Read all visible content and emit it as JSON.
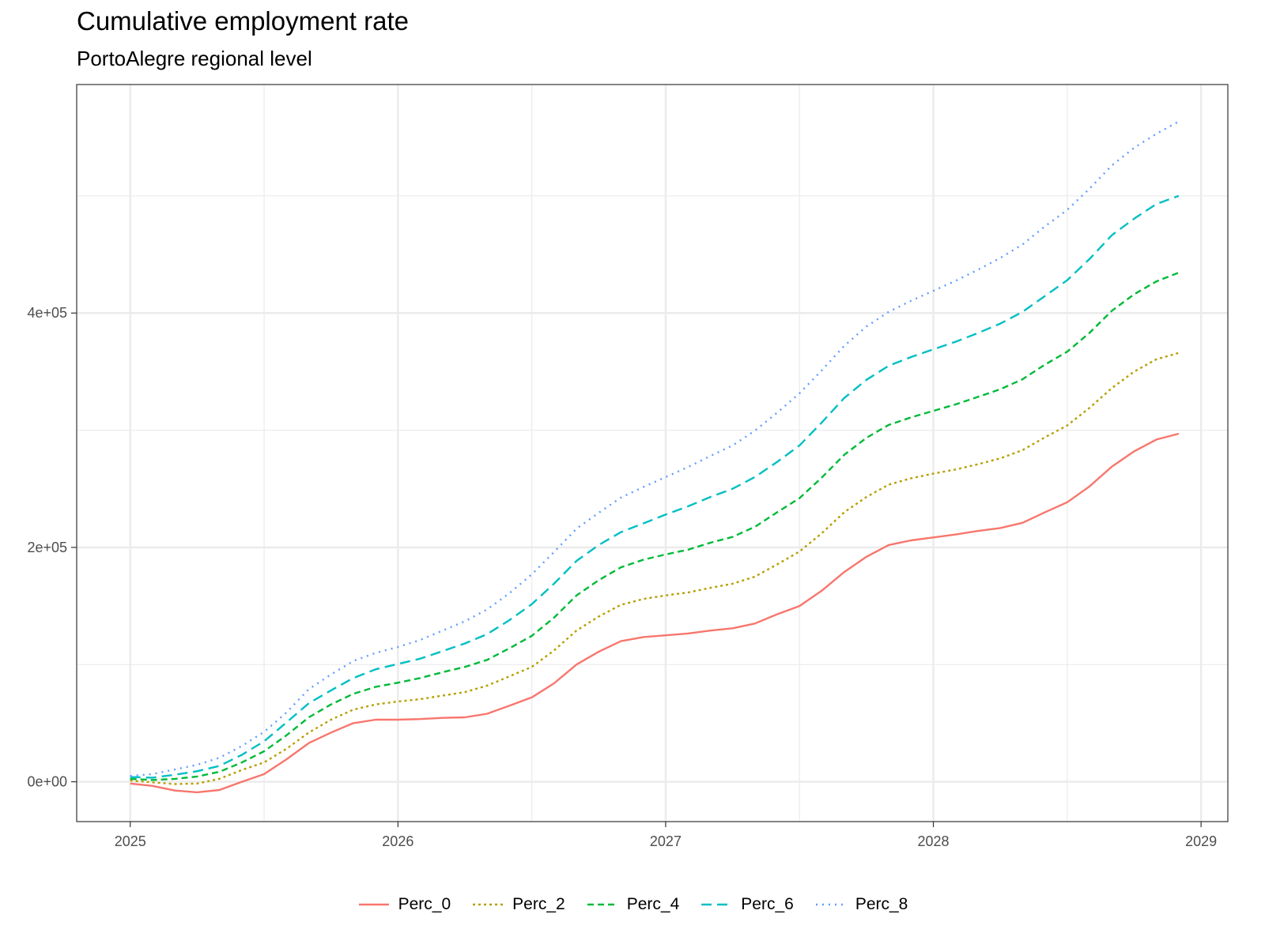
{
  "chart_data": {
    "type": "line",
    "title": "Cumulative employment rate",
    "subtitle": "PortoAlegre regional level",
    "xlabel": "",
    "ylabel": "",
    "x_ticks": [
      "2025",
      "2026",
      "2027",
      "2028",
      "2029"
    ],
    "y_ticks": [
      "0e+00",
      "2e+05",
      "4e+05"
    ],
    "xlim": [
      2024.8,
      2029.1
    ],
    "ylim": [
      -34000,
      595000
    ],
    "grid": true,
    "legend_position": "bottom",
    "x": [
      2025.0,
      2025.083,
      2025.167,
      2025.25,
      2025.333,
      2025.417,
      2025.5,
      2025.583,
      2025.667,
      2025.75,
      2025.833,
      2025.917,
      2026.0,
      2026.083,
      2026.167,
      2026.25,
      2026.333,
      2026.417,
      2026.5,
      2026.583,
      2026.667,
      2026.75,
      2026.833,
      2026.917,
      2027.0,
      2027.083,
      2027.167,
      2027.25,
      2027.333,
      2027.417,
      2027.5,
      2027.583,
      2027.667,
      2027.75,
      2027.833,
      2027.917,
      2028.0,
      2028.083,
      2028.167,
      2028.25,
      2028.333,
      2028.417,
      2028.5,
      2028.583,
      2028.667,
      2028.75,
      2028.833,
      2028.917
    ],
    "series": [
      {
        "name": "Perc_0",
        "color": "#F8766D",
        "dash": "",
        "values": [
          -1500,
          -3500,
          -7500,
          -9000,
          -7000,
          0,
          6500,
          19000,
          33000,
          42000,
          50000,
          53000,
          53000,
          53500,
          54500,
          55000,
          58000,
          65000,
          72000,
          84000,
          100000,
          111000,
          120000,
          123500,
          125000,
          126500,
          129000,
          131000,
          135000,
          143000,
          150000,
          163000,
          179000,
          192000,
          202000,
          206000,
          208500,
          211000,
          214000,
          216500,
          221000,
          230000,
          238500,
          252000,
          269000,
          282000,
          292000,
          297000
        ]
      },
      {
        "name": "Perc_2",
        "color": "#B79F00",
        "dash": "3,4",
        "values": [
          1000,
          -500,
          -2000,
          -1500,
          2500,
          10000,
          16500,
          28000,
          42000,
          53000,
          61500,
          66000,
          68500,
          70500,
          73500,
          76500,
          82000,
          90000,
          98000,
          112000,
          129000,
          141000,
          151000,
          156000,
          159000,
          161500,
          165500,
          169000,
          175000,
          185500,
          196500,
          212000,
          230000,
          243000,
          253500,
          259000,
          263000,
          266500,
          271000,
          276000,
          283000,
          294000,
          304000,
          319000,
          336000,
          350000,
          360500,
          366000
        ]
      },
      {
        "name": "Perc_4",
        "color": "#00BA38",
        "dash": "8,5",
        "values": [
          2500,
          1500,
          2500,
          4500,
          8500,
          16500,
          26000,
          39500,
          55000,
          66000,
          75000,
          81000,
          84500,
          88500,
          93500,
          98000,
          104000,
          114000,
          124500,
          140000,
          159000,
          172000,
          183000,
          189500,
          194000,
          198000,
          204000,
          209000,
          217500,
          230000,
          242000,
          259500,
          279000,
          293500,
          304500,
          311000,
          316500,
          322000,
          328500,
          335000,
          343500,
          356000,
          367000,
          383000,
          402000,
          416000,
          427000,
          434500
        ]
      },
      {
        "name": "Perc_6",
        "color": "#00BFC4",
        "dash": "13,7",
        "values": [
          4000,
          3500,
          6000,
          9000,
          13500,
          23000,
          34500,
          50500,
          67000,
          78000,
          88500,
          96000,
          100500,
          105000,
          111500,
          118000,
          126000,
          138000,
          151500,
          169000,
          188500,
          202000,
          213000,
          220500,
          228000,
          235000,
          243000,
          250000,
          260000,
          273000,
          287000,
          306500,
          327500,
          343000,
          355000,
          362500,
          369000,
          375500,
          383000,
          391000,
          401000,
          414500,
          428000,
          446000,
          466500,
          480500,
          493000,
          500000
        ]
      },
      {
        "name": "Perc_8",
        "color": "#619CFF",
        "dash": "2,6",
        "values": [
          5000,
          6500,
          10500,
          14500,
          20500,
          30500,
          42500,
          59000,
          79000,
          91500,
          103000,
          110000,
          115000,
          121000,
          129000,
          137000,
          147000,
          161000,
          177000,
          196000,
          216000,
          229500,
          242500,
          251500,
          260000,
          268500,
          278000,
          287000,
          299500,
          315000,
          331500,
          351000,
          372000,
          388500,
          401000,
          410500,
          419000,
          427500,
          437000,
          447000,
          458500,
          474000,
          488000,
          506000,
          526000,
          541000,
          553000,
          563500
        ]
      }
    ]
  }
}
